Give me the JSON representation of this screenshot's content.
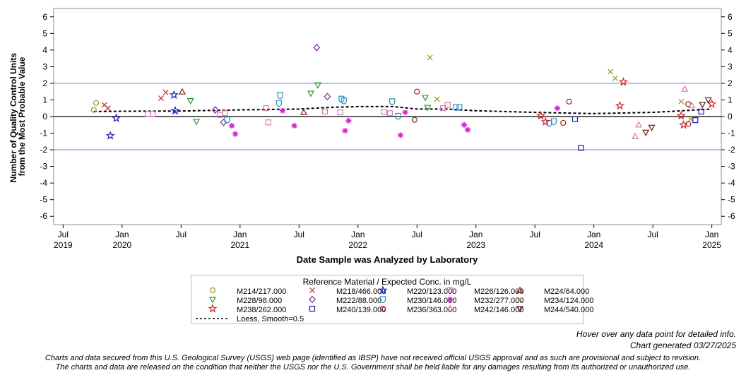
{
  "chart_data": {
    "type": "scatter",
    "ylabel_lines": [
      "Number of Quality Control Units",
      "from the Most Probable Value"
    ],
    "xlabel": "Date Sample was Analyzed by Laboratory",
    "ylim": [
      -6.5,
      6.5
    ],
    "yticks": [
      "6",
      "5",
      "4",
      "3",
      "2",
      "1",
      "0",
      "-1",
      "-2",
      "-3",
      "-4",
      "-5",
      "-6"
    ],
    "xlim": [
      2019.42,
      2025.08
    ],
    "xticks": [
      {
        "value": 2019.5,
        "month": "Jul",
        "year": "2019"
      },
      {
        "value": 2020.0,
        "month": "Jan",
        "year": "2020"
      },
      {
        "value": 2020.5,
        "month": "Jul",
        "year": ""
      },
      {
        "value": 2021.0,
        "month": "Jan",
        "year": "2021"
      },
      {
        "value": 2021.5,
        "month": "Jul",
        "year": ""
      },
      {
        "value": 2022.0,
        "month": "Jan",
        "year": "2022"
      },
      {
        "value": 2022.5,
        "month": "Jul",
        "year": ""
      },
      {
        "value": 2023.0,
        "month": "Jan",
        "year": "2023"
      },
      {
        "value": 2023.5,
        "month": "Jul",
        "year": ""
      },
      {
        "value": 2024.0,
        "month": "Jan",
        "year": "2024"
      },
      {
        "value": 2024.5,
        "month": "Jul",
        "year": ""
      },
      {
        "value": 2025.0,
        "month": "Jan",
        "year": "2025"
      }
    ],
    "reference_lines": [
      {
        "y": 2,
        "color": "#8b8bd6"
      },
      {
        "y": 0,
        "color": "#000000"
      },
      {
        "y": -2,
        "color": "#8b8bd6"
      }
    ],
    "series": [
      {
        "name": "M214/217.000",
        "marker": "circle",
        "color": "#9b9b1e",
        "points": [
          [
            2019.76,
            0.4
          ],
          [
            2019.78,
            0.82
          ]
        ]
      },
      {
        "name": "M218/466.000",
        "marker": "x",
        "color": "#e02020",
        "points": [
          [
            2019.85,
            0.7
          ],
          [
            2019.88,
            0.5
          ],
          [
            2020.33,
            1.1
          ],
          [
            2020.37,
            1.45
          ]
        ]
      },
      {
        "name": "M220/123.000",
        "marker": "star",
        "color": "#1a1ae6",
        "points": [
          [
            2019.9,
            -1.15
          ],
          [
            2019.95,
            -0.1
          ],
          [
            2020.44,
            1.3
          ],
          [
            2020.45,
            0.35
          ]
        ]
      },
      {
        "name": "M226/126.000",
        "marker": "square",
        "color": "#d977b3",
        "points": [
          [
            2020.22,
            0.15
          ],
          [
            2020.26,
            0.15
          ],
          [
            2020.83,
            0.1
          ],
          [
            2020.87,
            0.2
          ],
          [
            2021.22,
            0.5
          ],
          [
            2021.24,
            -0.35
          ],
          [
            2021.72,
            0.3
          ],
          [
            2021.85,
            0.25
          ],
          [
            2022.22,
            0.28
          ],
          [
            2022.27,
            0.2
          ],
          [
            2022.72,
            0.5
          ],
          [
            2022.76,
            0.7
          ]
        ]
      },
      {
        "name": "M224/64.000",
        "marker": "triangle",
        "color": "#8b1a1a",
        "points": [
          [
            2020.51,
            1.48
          ],
          [
            2021.54,
            0.25
          ]
        ]
      },
      {
        "name": "M228/98.000",
        "marker": "triangle-down",
        "color": "#22a022",
        "points": [
          [
            2020.58,
            0.95
          ],
          [
            2020.63,
            -0.3
          ],
          [
            2021.6,
            1.4
          ],
          [
            2021.66,
            1.9
          ],
          [
            2022.57,
            1.15
          ],
          [
            2022.59,
            0.55
          ]
        ]
      },
      {
        "name": "M222/88.000",
        "marker": "diamond",
        "color": "#8b1ab3",
        "points": [
          [
            2020.79,
            0.4
          ],
          [
            2020.86,
            -0.35
          ],
          [
            2021.65,
            4.15
          ],
          [
            2021.74,
            1.2
          ]
        ]
      },
      {
        "name": "M230/146.000",
        "marker": "shield",
        "color": "#2a8fbf",
        "points": [
          [
            2020.89,
            -0.2
          ],
          [
            2021.33,
            0.8
          ],
          [
            2021.34,
            1.28
          ],
          [
            2021.86,
            1.05
          ],
          [
            2021.88,
            0.95
          ],
          [
            2022.29,
            0.9
          ],
          [
            2022.34,
            0.02
          ],
          [
            2022.83,
            0.55
          ],
          [
            2022.86,
            0.55
          ],
          [
            2023.62,
            -0.4
          ],
          [
            2023.66,
            -0.3
          ]
        ]
      },
      {
        "name": "M232/277.000",
        "marker": "asterisk",
        "color": "#e020e0",
        "points": [
          [
            2020.93,
            -0.55
          ],
          [
            2020.96,
            -1.05
          ],
          [
            2021.36,
            0.35
          ],
          [
            2021.46,
            -0.55
          ],
          [
            2021.89,
            -0.85
          ],
          [
            2021.92,
            -0.25
          ],
          [
            2022.36,
            -1.12
          ],
          [
            2022.4,
            0.25
          ],
          [
            2022.9,
            -0.5
          ],
          [
            2022.93,
            -0.8
          ],
          [
            2023.69,
            0.5
          ]
        ]
      },
      {
        "name": "M234/124.000",
        "marker": "x",
        "color": "#9b9b1e",
        "points": [
          [
            2022.61,
            3.55
          ],
          [
            2022.67,
            1.05
          ],
          [
            2024.14,
            2.7
          ],
          [
            2024.18,
            2.3
          ],
          [
            2024.74,
            0.9
          ],
          [
            2024.82,
            -0.15
          ]
        ]
      },
      {
        "name": "M238/262.000",
        "marker": "star",
        "color": "#e02020",
        "points": [
          [
            2023.55,
            0.05
          ],
          [
            2023.59,
            -0.32
          ],
          [
            2024.22,
            0.65
          ],
          [
            2024.25,
            2.08
          ],
          [
            2024.74,
            0.05
          ],
          [
            2024.76,
            -0.5
          ],
          [
            2025.0,
            0.75
          ]
        ]
      },
      {
        "name": "M240/139.000",
        "marker": "square",
        "color": "#1a1ab3",
        "points": [
          [
            2023.84,
            -0.15
          ],
          [
            2023.89,
            -1.88
          ],
          [
            2024.86,
            -0.22
          ],
          [
            2024.91,
            0.3
          ]
        ]
      },
      {
        "name": "M236/363.000",
        "marker": "circle",
        "color": "#b31a1a",
        "points": [
          [
            2022.48,
            -0.2
          ],
          [
            2022.5,
            1.5
          ],
          [
            2023.74,
            -0.38
          ],
          [
            2023.79,
            0.9
          ],
          [
            2024.8,
            0.75
          ],
          [
            2024.8,
            -0.45
          ]
        ]
      },
      {
        "name": "M242/146.000",
        "marker": "triangle",
        "color": "#d977b3",
        "points": [
          [
            2024.35,
            -1.2
          ],
          [
            2024.38,
            -0.5
          ],
          [
            2024.77,
            1.65
          ],
          [
            2024.83,
            0.65
          ]
        ]
      },
      {
        "name": "M244/540.000",
        "marker": "triangle-down",
        "color": "#6a1010",
        "points": [
          [
            2024.44,
            -0.95
          ],
          [
            2024.49,
            -0.65
          ],
          [
            2024.92,
            0.72
          ],
          [
            2024.97,
            1.0
          ]
        ]
      }
    ],
    "loess": {
      "name": "Loess, Smooth=0.5",
      "color": "#000000",
      "points": [
        [
          2019.76,
          0.3
        ],
        [
          2020.0,
          0.32
        ],
        [
          2020.5,
          0.33
        ],
        [
          2021.0,
          0.4
        ],
        [
          2021.5,
          0.45
        ],
        [
          2021.75,
          0.55
        ],
        [
          2022.0,
          0.6
        ],
        [
          2022.3,
          0.6
        ],
        [
          2022.5,
          0.45
        ],
        [
          2022.75,
          0.45
        ],
        [
          2023.0,
          0.35
        ],
        [
          2023.5,
          0.25
        ],
        [
          2024.0,
          0.18
        ],
        [
          2024.5,
          0.25
        ],
        [
          2024.75,
          0.35
        ],
        [
          2025.0,
          0.45
        ]
      ]
    }
  },
  "legend": {
    "title": "Reference Material / Expected Conc. in mg/L"
  },
  "notes": {
    "hover": "Hover over any data point for detailed info.",
    "generated": "Chart generated 03/27/2025"
  },
  "disclaimer": {
    "line1": "Charts and data secured from this U.S. Geological Survey (USGS) web page (identified as IBSP) have not received official USGS approval and as such are provisional and subject to revision.",
    "line2": "The charts and data are released on the condition that neither the USGS nor the U.S. Government shall be held liable for any damages resulting from its authorized or unauthorized use."
  }
}
